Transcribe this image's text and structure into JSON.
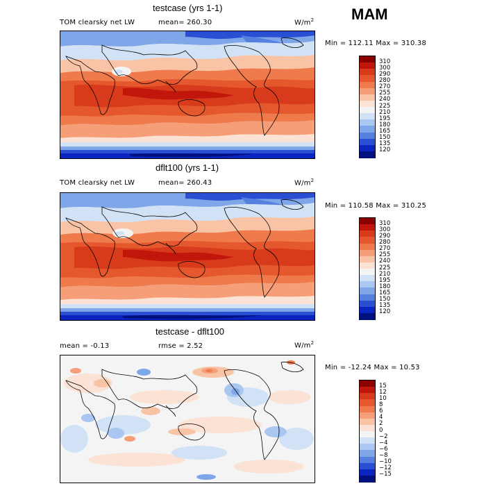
{
  "season": "MAM",
  "panels": [
    {
      "title": "testcase (yrs 1-1)",
      "left_label": "TOM clearsky net LW",
      "mean_label": "mean= 260.30",
      "units": "W/m",
      "units_sup": "2",
      "minmax": "Min = 112.11 Max = 310.38",
      "levels": [
        "310",
        "300",
        "290",
        "280",
        "270",
        "255",
        "240",
        "225",
        "210",
        "195",
        "180",
        "165",
        "150",
        "135",
        "120"
      ],
      "colors": [
        "#8b0000",
        "#c1160c",
        "#d83a1c",
        "#e5572c",
        "#ef7a4c",
        "#f59e78",
        "#f9c3a6",
        "#fbe2d4",
        "#f4f4f4",
        "#d2e2f6",
        "#a9c7f0",
        "#7fa6e8",
        "#5580e0",
        "#2b4fd2",
        "#0b24c0",
        "#00107f"
      ]
    },
    {
      "title": "dflt100 (yrs 1-1)",
      "left_label": "TOM clearsky net LW",
      "mean_label": "mean= 260.43",
      "units": "W/m",
      "units_sup": "2",
      "minmax": "Min = 110.58 Max = 310.25",
      "levels": [
        "310",
        "300",
        "290",
        "280",
        "270",
        "255",
        "240",
        "225",
        "210",
        "195",
        "180",
        "165",
        "150",
        "135",
        "120"
      ],
      "colors": [
        "#8b0000",
        "#c1160c",
        "#d83a1c",
        "#e5572c",
        "#ef7a4c",
        "#f59e78",
        "#f9c3a6",
        "#fbe2d4",
        "#f4f4f4",
        "#d2e2f6",
        "#a9c7f0",
        "#7fa6e8",
        "#5580e0",
        "#2b4fd2",
        "#0b24c0",
        "#00107f"
      ]
    },
    {
      "title": "testcase - dflt100",
      "left_label": "mean =  -0.13",
      "mean_label": "rmse =   2.52",
      "units": "W/m",
      "units_sup": "2",
      "minmax": "Min = -12.24 Max =  10.53",
      "levels": [
        "15",
        "12",
        "10",
        "8",
        "6",
        "4",
        "2",
        "0",
        "−2",
        "−4",
        "−6",
        "−8",
        "−10",
        "−12",
        "−15"
      ],
      "colors": [
        "#8b0000",
        "#c1160c",
        "#d83a1c",
        "#e5572c",
        "#ef7a4c",
        "#f59e78",
        "#f9c3a6",
        "#fbe2d4",
        "#f4f4f4",
        "#d2e2f6",
        "#a9c7f0",
        "#7fa6e8",
        "#5580e0",
        "#2b4fd2",
        "#0b24c0",
        "#00107f"
      ]
    }
  ]
}
